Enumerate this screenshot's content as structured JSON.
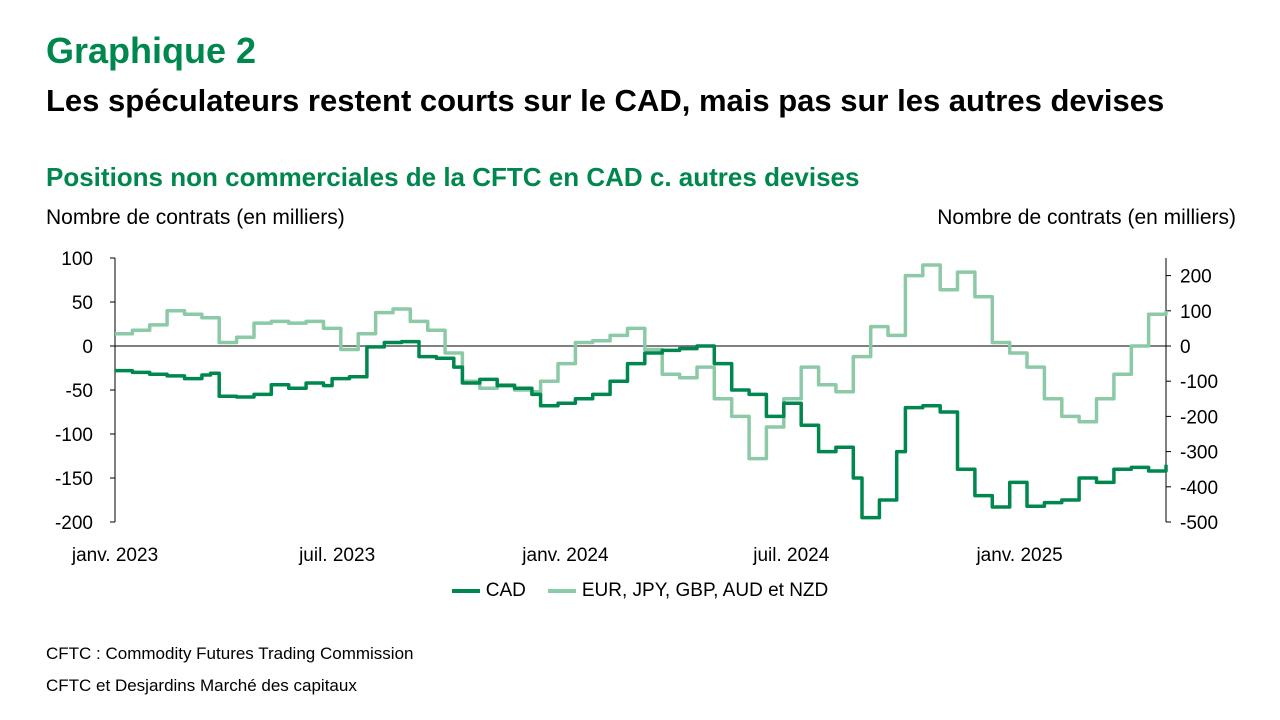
{
  "header": {
    "title": "Graphique 2",
    "subtitle": "Les spéculateurs restent courts sur le CAD, mais pas sur les autres devises",
    "chart_subtitle": "Positions non commerciales de la CFTC en CAD c. autres devises"
  },
  "footer": {
    "note": "CFTC : Commodity Futures Trading Commission",
    "source": "CFTC et Desjardins Marché des capitaux"
  },
  "colors": {
    "cad": "#00874e",
    "others": "#8ccaa7"
  },
  "chart_data": {
    "type": "line",
    "ylabel": "Nombre de contrats (en milliers)",
    "ylabel_right": "Nombre de contrats (en milliers)",
    "ylim": [
      -200,
      100
    ],
    "ylim_right": [
      -500,
      250
    ],
    "yticks": [
      -200,
      -150,
      -100,
      -50,
      0,
      50,
      100
    ],
    "yticks_right": [
      -500,
      -400,
      -300,
      -200,
      -100,
      0,
      100,
      200
    ],
    "xlim": [
      "2023-01-03",
      "2025-04-29"
    ],
    "xticks": [
      {
        "date": "2023-01-03",
        "label": "janv. 2023"
      },
      {
        "date": "2023-07-01",
        "label": "juil. 2023"
      },
      {
        "date": "2024-01-01",
        "label": "janv. 2024"
      },
      {
        "date": "2024-07-01",
        "label": "juil. 2024"
      },
      {
        "date": "2025-01-01",
        "label": "janv. 2025"
      }
    ],
    "legend_position": "bottom",
    "series": [
      {
        "name": "CAD",
        "axis": "left",
        "points": [
          [
            "2023-01-03",
            -28
          ],
          [
            "2023-01-17",
            -30
          ],
          [
            "2023-01-31",
            -32
          ],
          [
            "2023-02-14",
            -34
          ],
          [
            "2023-02-28",
            -37
          ],
          [
            "2023-03-14",
            -33
          ],
          [
            "2023-03-21",
            -31
          ],
          [
            "2023-03-28",
            -57
          ],
          [
            "2023-04-11",
            -58
          ],
          [
            "2023-04-25",
            -55
          ],
          [
            "2023-05-09",
            -44
          ],
          [
            "2023-05-23",
            -48
          ],
          [
            "2023-06-06",
            -42
          ],
          [
            "2023-06-20",
            -45
          ],
          [
            "2023-06-27",
            -37
          ],
          [
            "2023-07-11",
            -35
          ],
          [
            "2023-07-25",
            -1
          ],
          [
            "2023-08-08",
            4
          ],
          [
            "2023-08-22",
            5
          ],
          [
            "2023-09-05",
            -12
          ],
          [
            "2023-09-19",
            -14
          ],
          [
            "2023-10-03",
            -24
          ],
          [
            "2023-10-10",
            -42
          ],
          [
            "2023-10-24",
            -38
          ],
          [
            "2023-11-07",
            -45
          ],
          [
            "2023-11-21",
            -48
          ],
          [
            "2023-12-05",
            -55
          ],
          [
            "2023-12-12",
            -68
          ],
          [
            "2023-12-26",
            -65
          ],
          [
            "2024-01-09",
            -60
          ],
          [
            "2024-01-23",
            -55
          ],
          [
            "2024-02-06",
            -40
          ],
          [
            "2024-02-20",
            -20
          ],
          [
            "2024-03-05",
            -8
          ],
          [
            "2024-03-19",
            -5
          ],
          [
            "2024-04-02",
            -3
          ],
          [
            "2024-04-16",
            0
          ],
          [
            "2024-04-30",
            -20
          ],
          [
            "2024-05-14",
            -50
          ],
          [
            "2024-05-28",
            -55
          ],
          [
            "2024-06-11",
            -80
          ],
          [
            "2024-06-25",
            -65
          ],
          [
            "2024-07-09",
            -90
          ],
          [
            "2024-07-23",
            -120
          ],
          [
            "2024-08-06",
            -115
          ],
          [
            "2024-08-20",
            -150
          ],
          [
            "2024-08-27",
            -195
          ],
          [
            "2024-09-10",
            -175
          ],
          [
            "2024-09-24",
            -120
          ],
          [
            "2024-10-01",
            -70
          ],
          [
            "2024-10-15",
            -68
          ],
          [
            "2024-10-29",
            -75
          ],
          [
            "2024-11-12",
            -140
          ],
          [
            "2024-11-26",
            -170
          ],
          [
            "2024-12-10",
            -183
          ],
          [
            "2024-12-24",
            -155
          ],
          [
            "2025-01-07",
            -182
          ],
          [
            "2025-01-21",
            -178
          ],
          [
            "2025-02-04",
            -175
          ],
          [
            "2025-02-18",
            -150
          ],
          [
            "2025-03-04",
            -155
          ],
          [
            "2025-03-18",
            -140
          ],
          [
            "2025-04-01",
            -138
          ],
          [
            "2025-04-15",
            -142
          ],
          [
            "2025-04-29",
            -135
          ]
        ]
      },
      {
        "name": "EUR, JPY, GBP, AUD et NZD",
        "axis": "right",
        "points": [
          [
            "2023-01-03",
            35
          ],
          [
            "2023-01-17",
            45
          ],
          [
            "2023-01-31",
            60
          ],
          [
            "2023-02-14",
            100
          ],
          [
            "2023-02-28",
            90
          ],
          [
            "2023-03-14",
            80
          ],
          [
            "2023-03-28",
            10
          ],
          [
            "2023-04-11",
            25
          ],
          [
            "2023-04-25",
            65
          ],
          [
            "2023-05-09",
            70
          ],
          [
            "2023-05-23",
            65
          ],
          [
            "2023-06-06",
            70
          ],
          [
            "2023-06-20",
            50
          ],
          [
            "2023-07-04",
            -10
          ],
          [
            "2023-07-18",
            35
          ],
          [
            "2023-08-01",
            95
          ],
          [
            "2023-08-15",
            105
          ],
          [
            "2023-08-29",
            70
          ],
          [
            "2023-09-12",
            45
          ],
          [
            "2023-09-26",
            -20
          ],
          [
            "2023-10-10",
            -100
          ],
          [
            "2023-10-24",
            -120
          ],
          [
            "2023-11-07",
            -110
          ],
          [
            "2023-11-21",
            -125
          ],
          [
            "2023-12-05",
            -130
          ],
          [
            "2023-12-12",
            -100
          ],
          [
            "2023-12-26",
            -50
          ],
          [
            "2024-01-09",
            10
          ],
          [
            "2024-01-23",
            15
          ],
          [
            "2024-02-06",
            30
          ],
          [
            "2024-02-20",
            50
          ],
          [
            "2024-03-05",
            -10
          ],
          [
            "2024-03-19",
            -80
          ],
          [
            "2024-04-02",
            -90
          ],
          [
            "2024-04-16",
            -60
          ],
          [
            "2024-04-30",
            -150
          ],
          [
            "2024-05-14",
            -200
          ],
          [
            "2024-05-28",
            -320
          ],
          [
            "2024-06-11",
            -230
          ],
          [
            "2024-06-25",
            -150
          ],
          [
            "2024-07-09",
            -60
          ],
          [
            "2024-07-23",
            -110
          ],
          [
            "2024-08-06",
            -130
          ],
          [
            "2024-08-20",
            -30
          ],
          [
            "2024-09-03",
            55
          ],
          [
            "2024-09-17",
            30
          ],
          [
            "2024-10-01",
            200
          ],
          [
            "2024-10-15",
            230
          ],
          [
            "2024-10-29",
            160
          ],
          [
            "2024-11-12",
            210
          ],
          [
            "2024-11-26",
            140
          ],
          [
            "2024-12-10",
            10
          ],
          [
            "2024-12-24",
            -20
          ],
          [
            "2025-01-07",
            -60
          ],
          [
            "2025-01-21",
            -150
          ],
          [
            "2025-02-04",
            -200
          ],
          [
            "2025-02-18",
            -215
          ],
          [
            "2025-03-04",
            -150
          ],
          [
            "2025-03-18",
            -80
          ],
          [
            "2025-04-01",
            0
          ],
          [
            "2025-04-15",
            90
          ],
          [
            "2025-04-29",
            100
          ]
        ]
      }
    ]
  }
}
